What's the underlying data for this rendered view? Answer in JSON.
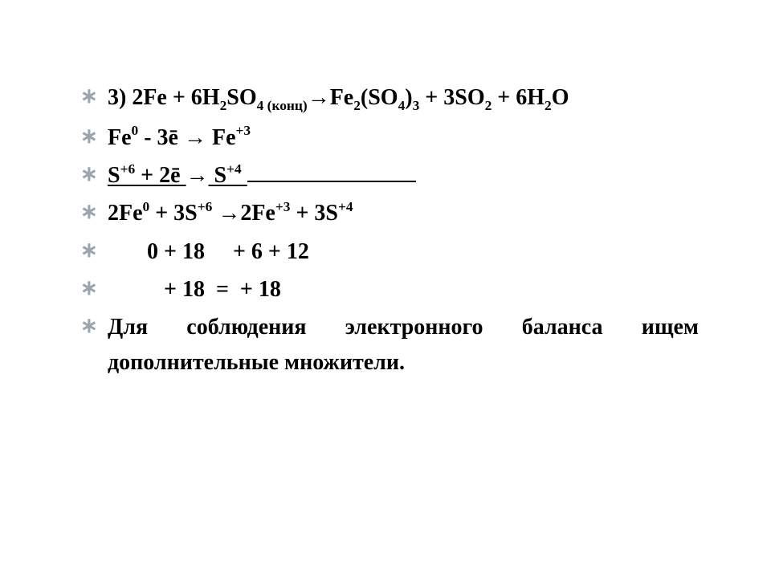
{
  "slide": {
    "background_color": "#ffffff",
    "text_color": "#000000",
    "bullet_color": "#9aa5b0",
    "font_family": "Times New Roman",
    "font_size_pt": 21,
    "font_weight": "bold",
    "glyphs": {
      "bullet": "∗",
      "arrow": "→",
      "ebar": "ē"
    },
    "lines": [
      {
        "id": "eq-main",
        "parts": {
          "lead": "3) 2Fe + 6H",
          "h2_sub": "2",
          "so": "SO",
          "so4_sub": "4",
          "so4_annot": " (конц)",
          "arrow1": "→",
          "fe2": "Fe",
          "fe2_sub": "2",
          "so4b": "(SO",
          "so4b_sub": "4",
          "so4b_close": ")",
          "so4b_outer_sub": "3",
          "plus_so2": " + 3SO",
          "so2_sub": "2",
          "plus_h2o": " + 6H",
          "h2o_sub": "2",
          "o": "O"
        }
      },
      {
        "id": "half-fe",
        "parts": {
          "fe": "Fe",
          "fe_sup": "0",
          "mid": " - 3ē ",
          "arrow": "→",
          "sp": " Fe",
          "fe_sup2": "+3"
        }
      },
      {
        "id": "half-s",
        "parts": {
          "s": "S",
          "s_sup": "+6",
          "mid": " + 2ē ",
          "arrow": "→",
          "sp": " S",
          "s_sup2": "+4"
        }
      },
      {
        "id": "sum-eq",
        "parts": {
          "a": "2Fe",
          "a_sup": "0",
          "b": " + 3S",
          "b_sup": "+6",
          "sp1": " ",
          "arrow": "→",
          "c": "2Fe",
          "c_sup": "+3",
          "d": " + 3S",
          "d_sup": "+4"
        }
      },
      {
        "id": "nums1",
        "text": "       0 + 18     + 6 + 12"
      },
      {
        "id": "nums2",
        "text": "          + 18  =  + 18"
      },
      {
        "id": "explain",
        "text": "Для соблюдения электронного баланса ищем дополнительные множители."
      }
    ]
  }
}
